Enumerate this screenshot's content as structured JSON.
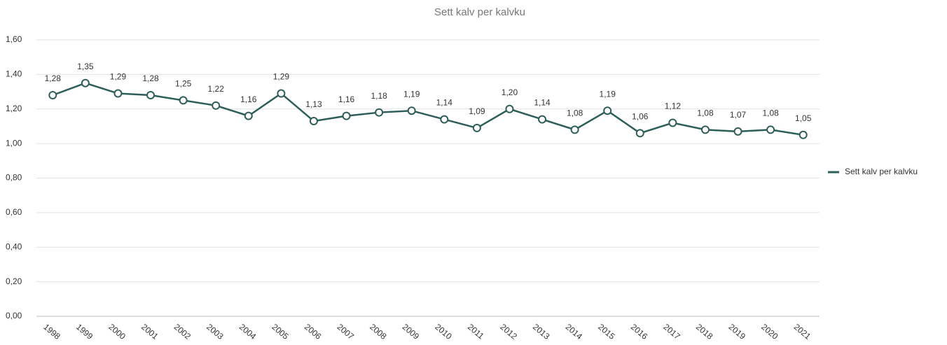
{
  "chart_data": {
    "type": "line",
    "title": "Sett kalv per kalvku",
    "categories": [
      "1998",
      "1999",
      "2000",
      "2001",
      "2002",
      "2003",
      "2004",
      "2005",
      "2006",
      "2007",
      "2008",
      "2009",
      "2010",
      "2011",
      "2012",
      "2013",
      "2014",
      "2015",
      "2016",
      "2017",
      "2018",
      "2019",
      "2020",
      "2021"
    ],
    "series": [
      {
        "name": "Sett kalv per kalvku",
        "color": "#2e5e59",
        "values": [
          1.28,
          1.35,
          1.29,
          1.28,
          1.25,
          1.22,
          1.16,
          1.29,
          1.13,
          1.16,
          1.18,
          1.19,
          1.14,
          1.09,
          1.2,
          1.14,
          1.08,
          1.19,
          1.06,
          1.12,
          1.08,
          1.07,
          1.08,
          1.05
        ],
        "value_labels": [
          "1,28",
          "1,35",
          "1,29",
          "1,28",
          "1,25",
          "1,22",
          "1,16",
          "1,29",
          "1,13",
          "1,16",
          "1,18",
          "1,19",
          "1,14",
          "1,09",
          "1,20",
          "1,14",
          "1,08",
          "1,19",
          "1,06",
          "1,12",
          "1,08",
          "1,07",
          "1,08",
          "1,05"
        ]
      }
    ],
    "ylim": [
      0,
      1.6
    ],
    "yticks": [
      {
        "value": 0,
        "label": "0,00"
      },
      {
        "value": 0.2,
        "label": "0,20"
      },
      {
        "value": 0.4,
        "label": "0,40"
      },
      {
        "value": 0.6,
        "label": "0,60"
      },
      {
        "value": 0.8,
        "label": "0,80"
      },
      {
        "value": 1.0,
        "label": "1,00"
      },
      {
        "value": 1.2,
        "label": "1,20"
      },
      {
        "value": 1.4,
        "label": "1,40"
      },
      {
        "value": 1.6,
        "label": "1,60"
      }
    ],
    "grid": true,
    "legend": "right"
  }
}
